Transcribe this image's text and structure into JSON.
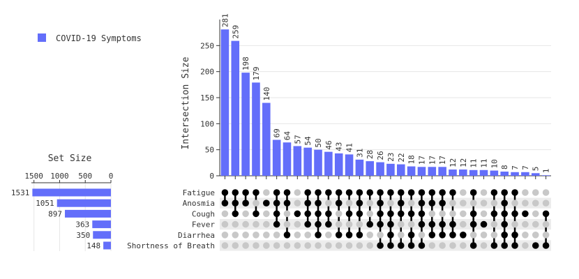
{
  "chart_data": {
    "type": "upset",
    "legend": {
      "label": "COVID-19 Symptoms",
      "color": "#636efa",
      "placement": "top-left"
    },
    "intersection_axis": {
      "label": "Intersection Size",
      "ticks": [
        0,
        50,
        100,
        150,
        200,
        250
      ],
      "range": [
        0,
        300
      ]
    },
    "set_size_axis": {
      "title": "Set Size",
      "ticks": [
        1500,
        1000,
        500,
        0
      ],
      "range": [
        0,
        1550
      ]
    },
    "bar_color": "#636efa",
    "sets": [
      {
        "name": "Fatigue",
        "size": 1531
      },
      {
        "name": "Anosmia",
        "size": 1051
      },
      {
        "name": "Cough",
        "size": 897
      },
      {
        "name": "Fever",
        "size": 363
      },
      {
        "name": "Diarrhea",
        "size": 350
      },
      {
        "name": "Shortness of Breath",
        "size": 148
      }
    ],
    "intersections": [
      {
        "value": 281,
        "sets": [
          1,
          1,
          0,
          0,
          0,
          0
        ]
      },
      {
        "value": 259,
        "sets": [
          1,
          1,
          1,
          0,
          0,
          0
        ]
      },
      {
        "value": 198,
        "sets": [
          1,
          1,
          0,
          0,
          0,
          0
        ]
      },
      {
        "value": 179,
        "sets": [
          1,
          0,
          1,
          0,
          0,
          0
        ]
      },
      {
        "value": 140,
        "sets": [
          0,
          1,
          0,
          0,
          0,
          0
        ]
      },
      {
        "value": 69,
        "sets": [
          1,
          1,
          1,
          1,
          0,
          0
        ]
      },
      {
        "value": 64,
        "sets": [
          1,
          1,
          0,
          0,
          1,
          0
        ]
      },
      {
        "value": 57,
        "sets": [
          0,
          0,
          1,
          0,
          0,
          0
        ]
      },
      {
        "value": 54,
        "sets": [
          1,
          1,
          1,
          1,
          0,
          0
        ]
      },
      {
        "value": 50,
        "sets": [
          1,
          1,
          1,
          1,
          1,
          0
        ]
      },
      {
        "value": 46,
        "sets": [
          1,
          0,
          1,
          1,
          0,
          0
        ]
      },
      {
        "value": 43,
        "sets": [
          1,
          1,
          0,
          0,
          1,
          0
        ]
      },
      {
        "value": 41,
        "sets": [
          1,
          0,
          1,
          0,
          1,
          0
        ]
      },
      {
        "value": 31,
        "sets": [
          1,
          1,
          1,
          0,
          1,
          0
        ]
      },
      {
        "value": 28,
        "sets": [
          1,
          0,
          0,
          1,
          0,
          0
        ]
      },
      {
        "value": 26,
        "sets": [
          1,
          1,
          1,
          1,
          0,
          1
        ]
      },
      {
        "value": 23,
        "sets": [
          1,
          0,
          1,
          1,
          1,
          1
        ]
      },
      {
        "value": 22,
        "sets": [
          1,
          1,
          1,
          0,
          0,
          1
        ]
      },
      {
        "value": 18,
        "sets": [
          1,
          0,
          1,
          0,
          1,
          1
        ]
      },
      {
        "value": 17,
        "sets": [
          1,
          1,
          1,
          1,
          0,
          1
        ]
      },
      {
        "value": 17,
        "sets": [
          1,
          1,
          0,
          1,
          1,
          0
        ]
      },
      {
        "value": 17,
        "sets": [
          1,
          1,
          0,
          1,
          1,
          0
        ]
      },
      {
        "value": 12,
        "sets": [
          1,
          0,
          0,
          1,
          1,
          0
        ]
      },
      {
        "value": 12,
        "sets": [
          0,
          0,
          0,
          0,
          1,
          0
        ]
      },
      {
        "value": 11,
        "sets": [
          1,
          0,
          1,
          1,
          0,
          1
        ]
      },
      {
        "value": 11,
        "sets": [
          0,
          0,
          0,
          1,
          0,
          0
        ]
      },
      {
        "value": 10,
        "sets": [
          1,
          0,
          1,
          0,
          0,
          1
        ]
      },
      {
        "value": 8,
        "sets": [
          1,
          1,
          1,
          1,
          1,
          1
        ]
      },
      {
        "value": 7,
        "sets": [
          1,
          0,
          1,
          0,
          1,
          1
        ]
      },
      {
        "value": 7,
        "sets": [
          0,
          0,
          1,
          0,
          0,
          0
        ]
      },
      {
        "value": 5,
        "sets": [
          0,
          0,
          0,
          0,
          0,
          1
        ]
      },
      {
        "value": 1,
        "sets": [
          0,
          0,
          1,
          0,
          0,
          1
        ]
      }
    ]
  }
}
